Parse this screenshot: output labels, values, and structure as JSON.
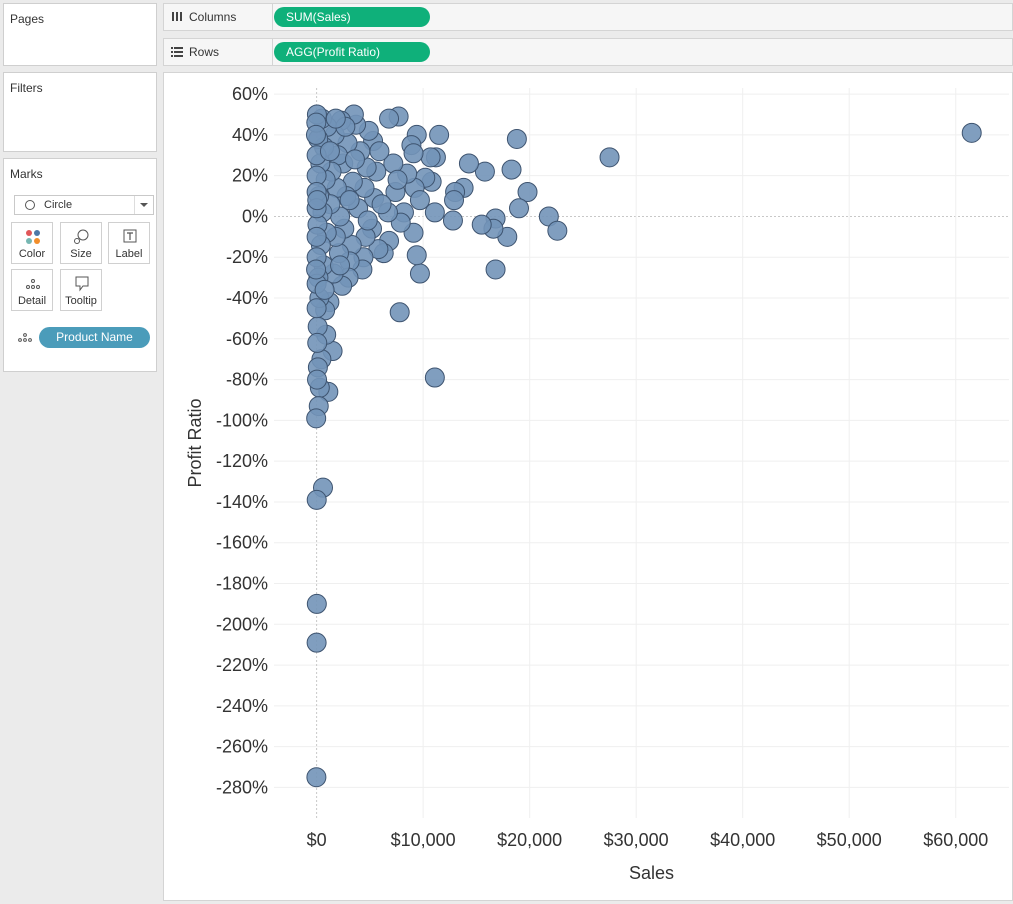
{
  "panels": {
    "pages": {
      "title": "Pages"
    },
    "filters": {
      "title": "Filters"
    },
    "marks": {
      "title": "Marks",
      "mark_type": "Circle",
      "buttons": {
        "color": "Color",
        "size": "Size",
        "label": "Label",
        "detail": "Detail",
        "tooltip": "Tooltip"
      },
      "detail_field": "Product Name"
    }
  },
  "shelves": {
    "columns": {
      "label": "Columns",
      "field": "SUM(Sales)"
    },
    "rows": {
      "label": "Rows",
      "field": "AGG(Profit Ratio)"
    }
  },
  "colors": {
    "pill_green": "#0fb07a",
    "pill_blue": "#4b9cba",
    "mark_fill": "#7293b8",
    "mark_stroke": "#3e5470"
  },
  "chart_data": {
    "type": "scatter",
    "xlabel": "Sales",
    "ylabel": "Profit Ratio",
    "xlim": [
      -4000,
      65000
    ],
    "ylim": [
      -295,
      63
    ],
    "x_ticks": [
      {
        "value": 0,
        "label": "$0"
      },
      {
        "value": 10000,
        "label": "$10,000"
      },
      {
        "value": 20000,
        "label": "$20,000"
      },
      {
        "value": 30000,
        "label": "$30,000"
      },
      {
        "value": 40000,
        "label": "$40,000"
      },
      {
        "value": 50000,
        "label": "$50,000"
      },
      {
        "value": 60000,
        "label": "$60,000"
      }
    ],
    "y_ticks": [
      {
        "value": 60,
        "label": "60%"
      },
      {
        "value": 40,
        "label": "40%"
      },
      {
        "value": 20,
        "label": "20%"
      },
      {
        "value": 0,
        "label": "0%"
      },
      {
        "value": -20,
        "label": "-20%"
      },
      {
        "value": -40,
        "label": "-40%"
      },
      {
        "value": -60,
        "label": "-60%"
      },
      {
        "value": -80,
        "label": "-80%"
      },
      {
        "value": -100,
        "label": "-100%"
      },
      {
        "value": -120,
        "label": "-120%"
      },
      {
        "value": -140,
        "label": "-140%"
      },
      {
        "value": -160,
        "label": "-160%"
      },
      {
        "value": -180,
        "label": "-180%"
      },
      {
        "value": -200,
        "label": "-200%"
      },
      {
        "value": -220,
        "label": "-220%"
      },
      {
        "value": -240,
        "label": "-240%"
      },
      {
        "value": -260,
        "label": "-260%"
      },
      {
        "value": -280,
        "label": "-280%"
      }
    ],
    "grid": true,
    "points": [
      {
        "x": 61500,
        "y": 41
      },
      {
        "x": 27500,
        "y": 29
      },
      {
        "x": 18800,
        "y": 38
      },
      {
        "x": 18300,
        "y": 23
      },
      {
        "x": 19800,
        "y": 12
      },
      {
        "x": 19000,
        "y": 4
      },
      {
        "x": 21800,
        "y": 0
      },
      {
        "x": 22600,
        "y": -7
      },
      {
        "x": 17900,
        "y": -10
      },
      {
        "x": 16800,
        "y": -1
      },
      {
        "x": 16600,
        "y": -6
      },
      {
        "x": 15500,
        "y": -4
      },
      {
        "x": 16800,
        "y": -26
      },
      {
        "x": 15800,
        "y": 22
      },
      {
        "x": 14300,
        "y": 26
      },
      {
        "x": 13800,
        "y": 14
      },
      {
        "x": 13000,
        "y": 12
      },
      {
        "x": 12900,
        "y": 8
      },
      {
        "x": 12800,
        "y": -2
      },
      {
        "x": 11500,
        "y": 40
      },
      {
        "x": 11200,
        "y": 29
      },
      {
        "x": 10700,
        "y": 29
      },
      {
        "x": 11100,
        "y": 2
      },
      {
        "x": 10800,
        "y": 17
      },
      {
        "x": 10200,
        "y": 19
      },
      {
        "x": 11100,
        "y": -79
      },
      {
        "x": 7800,
        "y": -47
      },
      {
        "x": 9700,
        "y": -28
      },
      {
        "x": 9400,
        "y": -19
      },
      {
        "x": 9100,
        "y": -8
      },
      {
        "x": 9400,
        "y": 40
      },
      {
        "x": 8900,
        "y": 35
      },
      {
        "x": 9100,
        "y": 31
      },
      {
        "x": 9200,
        "y": 14
      },
      {
        "x": 9700,
        "y": 8
      },
      {
        "x": 8500,
        "y": 21
      },
      {
        "x": 8200,
        "y": 2
      },
      {
        "x": 7900,
        "y": -3
      },
      {
        "x": 7400,
        "y": 12
      },
      {
        "x": 7200,
        "y": 26
      },
      {
        "x": 7700,
        "y": 49
      },
      {
        "x": 6800,
        "y": 48
      },
      {
        "x": 7600,
        "y": 18
      },
      {
        "x": 6700,
        "y": 2
      },
      {
        "x": 6800,
        "y": -12
      },
      {
        "x": 6300,
        "y": -18
      },
      {
        "x": 5800,
        "y": -16
      },
      {
        "x": 5300,
        "y": 37
      },
      {
        "x": 5600,
        "y": 22
      },
      {
        "x": 5400,
        "y": 9
      },
      {
        "x": 5200,
        "y": -6
      },
      {
        "x": 4900,
        "y": 42
      },
      {
        "x": 4700,
        "y": 24
      },
      {
        "x": 4500,
        "y": 14
      },
      {
        "x": 4600,
        "y": -10
      },
      {
        "x": 4400,
        "y": -20
      },
      {
        "x": 4300,
        "y": -26
      },
      {
        "x": 4100,
        "y": 32
      },
      {
        "x": 3900,
        "y": 4
      },
      {
        "x": 3700,
        "y": 45
      },
      {
        "x": 3500,
        "y": 50
      },
      {
        "x": 3400,
        "y": 17
      },
      {
        "x": 3300,
        "y": -14
      },
      {
        "x": 3100,
        "y": -22
      },
      {
        "x": 3000,
        "y": -30
      },
      {
        "x": 2900,
        "y": 36
      },
      {
        "x": 2800,
        "y": 10
      },
      {
        "x": 2600,
        "y": -6
      },
      {
        "x": 2500,
        "y": 26
      },
      {
        "x": 2400,
        "y": -34
      },
      {
        "x": 2300,
        "y": 47
      },
      {
        "x": 2200,
        "y": 0
      },
      {
        "x": 2100,
        "y": -18
      },
      {
        "x": 2000,
        "y": 30
      },
      {
        "x": 1900,
        "y": 14
      },
      {
        "x": 1800,
        "y": -10
      },
      {
        "x": 1700,
        "y": 40
      },
      {
        "x": 1600,
        "y": -28
      },
      {
        "x": 1500,
        "y": -66
      },
      {
        "x": 1400,
        "y": 22
      },
      {
        "x": 1300,
        "y": 6
      },
      {
        "x": 1200,
        "y": -42
      },
      {
        "x": 1100,
        "y": -86
      },
      {
        "x": 1000,
        "y": 44
      },
      {
        "x": 950,
        "y": -8
      },
      {
        "x": 900,
        "y": -58
      },
      {
        "x": 850,
        "y": 18
      },
      {
        "x": 800,
        "y": -46
      },
      {
        "x": 700,
        "y": 34
      },
      {
        "x": 650,
        "y": -24
      },
      {
        "x": 600,
        "y": -133
      },
      {
        "x": 550,
        "y": 2
      },
      {
        "x": 500,
        "y": 48
      },
      {
        "x": 450,
        "y": -70
      },
      {
        "x": 400,
        "y": -14
      },
      {
        "x": 350,
        "y": 26
      },
      {
        "x": 300,
        "y": -84
      },
      {
        "x": 260,
        "y": -40
      },
      {
        "x": 230,
        "y": 10
      },
      {
        "x": 200,
        "y": -93
      },
      {
        "x": 170,
        "y": -30
      },
      {
        "x": 150,
        "y": 38
      },
      {
        "x": 120,
        "y": -74
      },
      {
        "x": 100,
        "y": -54
      },
      {
        "x": 80,
        "y": -4
      },
      {
        "x": 60,
        "y": -62
      },
      {
        "x": 40,
        "y": -80
      },
      {
        "x": 20,
        "y": -190
      },
      {
        "x": 0,
        "y": -209
      },
      {
        "x": 10,
        "y": -139
      },
      {
        "x": -20,
        "y": -275
      },
      {
        "x": -40,
        "y": -99
      },
      {
        "x": 30,
        "y": 50
      },
      {
        "x": -30,
        "y": 46
      },
      {
        "x": 0,
        "y": 30
      },
      {
        "x": 0,
        "y": 20
      },
      {
        "x": 0,
        "y": 12
      },
      {
        "x": 0,
        "y": 4
      },
      {
        "x": 0,
        "y": -10
      },
      {
        "x": 0,
        "y": -20
      },
      {
        "x": 0,
        "y": -33
      },
      {
        "x": 0,
        "y": -45
      },
      {
        "x": -60,
        "y": 40
      },
      {
        "x": 60,
        "y": 8
      },
      {
        "x": -50,
        "y": -26
      },
      {
        "x": 2700,
        "y": 44
      },
      {
        "x": 3600,
        "y": 28
      },
      {
        "x": 4800,
        "y": -2
      },
      {
        "x": 5900,
        "y": 32
      },
      {
        "x": 6100,
        "y": 6
      },
      {
        "x": 1800,
        "y": 48
      },
      {
        "x": 1250,
        "y": 32
      },
      {
        "x": 750,
        "y": -36
      },
      {
        "x": 2200,
        "y": -24
      },
      {
        "x": 3100,
        "y": 8
      }
    ]
  }
}
